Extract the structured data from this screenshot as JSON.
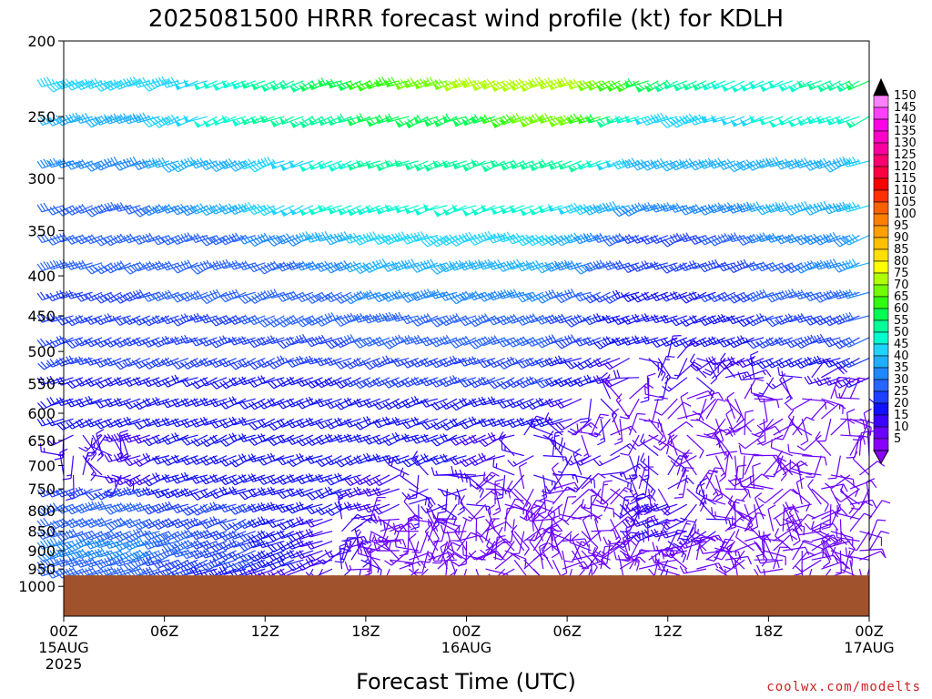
{
  "chart_data": {
    "type": "wind-profile",
    "title": "2025081500 HRRR forecast wind profile (kt) for KDLH",
    "xlabel": "Forecast Time (UTC)",
    "credit": "coolwx.com/modelts",
    "y_axis": {
      "variable": "pressure (mb)",
      "scale": "log",
      "inverted": true,
      "range": [
        1000,
        200
      ],
      "ticks": [
        "200",
        "250",
        "300",
        "350",
        "400",
        "450",
        "500",
        "550",
        "600",
        "650",
        "700",
        "750",
        "800",
        "850",
        "900",
        "950",
        "1000"
      ]
    },
    "x_axis": {
      "range_hours": [
        0,
        48
      ],
      "ticks": [
        {
          "hour": 0,
          "label": "00Z",
          "sub1": "15AUG",
          "sub2": "2025"
        },
        {
          "hour": 6,
          "label": "06Z",
          "sub1": "",
          "sub2": ""
        },
        {
          "hour": 12,
          "label": "12Z",
          "sub1": "",
          "sub2": ""
        },
        {
          "hour": 18,
          "label": "18Z",
          "sub1": "",
          "sub2": ""
        },
        {
          "hour": 24,
          "label": "00Z",
          "sub1": "16AUG",
          "sub2": ""
        },
        {
          "hour": 30,
          "label": "06Z",
          "sub1": "",
          "sub2": ""
        },
        {
          "hour": 36,
          "label": "12Z",
          "sub1": "",
          "sub2": ""
        },
        {
          "hour": 42,
          "label": "18Z",
          "sub1": "",
          "sub2": ""
        },
        {
          "hour": 48,
          "label": "00Z",
          "sub1": "17AUG",
          "sub2": ""
        }
      ]
    },
    "surface_pressure_mb": 968,
    "colorbar": {
      "unit": "kt",
      "levels": [
        5,
        10,
        15,
        20,
        25,
        30,
        35,
        40,
        45,
        50,
        55,
        60,
        65,
        70,
        75,
        80,
        85,
        90,
        95,
        100,
        105,
        110,
        115,
        120,
        125,
        130,
        135,
        140,
        145,
        150
      ],
      "colors": [
        "#8a00ff",
        "#6a00ff",
        "#3c00ff",
        "#1010ff",
        "#1e40ff",
        "#2864ff",
        "#1e88ff",
        "#1eb0ff",
        "#1ed4ff",
        "#00ffd0",
        "#00ff9a",
        "#00ff50",
        "#30ff10",
        "#70ff00",
        "#b0ff00",
        "#ffff00",
        "#ffe000",
        "#ffc000",
        "#ffa000",
        "#ff8000",
        "#ff6000",
        "#ff3000",
        "#ff0000",
        "#ff0040",
        "#ff0070",
        "#ff00a0",
        "#ff00c8",
        "#ff00e8",
        "#ff40ff",
        "#ff80ff"
      ]
    },
    "wind_speed_kt": {
      "description": "Approximate wind speed by pressure level (rows) over forecast hours 0,6,12,...,48 (columns)",
      "hours": [
        0,
        6,
        12,
        18,
        24,
        30,
        36,
        42,
        48
      ],
      "levels_mb": [
        225,
        250,
        285,
        325,
        355,
        385,
        420,
        450,
        480,
        510,
        540,
        575,
        610,
        640,
        680,
        720,
        750,
        785,
        820,
        850,
        875,
        900,
        925,
        950
      ],
      "values": [
        [
          45,
          45,
          55,
          65,
          75,
          80,
          60,
          50,
          60
        ],
        [
          40,
          45,
          55,
          60,
          60,
          75,
          45,
          50,
          55
        ],
        [
          35,
          40,
          45,
          55,
          55,
          60,
          40,
          40,
          45
        ],
        [
          30,
          35,
          45,
          55,
          50,
          50,
          35,
          40,
          45
        ],
        [
          30,
          30,
          35,
          45,
          45,
          45,
          25,
          35,
          40
        ],
        [
          30,
          30,
          30,
          40,
          40,
          40,
          25,
          30,
          40
        ],
        [
          25,
          30,
          30,
          35,
          35,
          35,
          20,
          30,
          35
        ],
        [
          25,
          25,
          30,
          35,
          30,
          30,
          20,
          25,
          30
        ],
        [
          25,
          25,
          25,
          30,
          30,
          30,
          20,
          25,
          30
        ],
        [
          25,
          25,
          25,
          25,
          25,
          25,
          15,
          20,
          25
        ],
        [
          20,
          20,
          20,
          25,
          25,
          25,
          15,
          15,
          20
        ],
        [
          20,
          20,
          20,
          20,
          20,
          20,
          10,
          10,
          15
        ],
        [
          20,
          20,
          20,
          20,
          20,
          20,
          10,
          10,
          10
        ],
        [
          15,
          20,
          20,
          20,
          20,
          15,
          10,
          10,
          10
        ],
        [
          15,
          20,
          20,
          20,
          20,
          15,
          15,
          10,
          10
        ],
        [
          15,
          20,
          20,
          20,
          15,
          15,
          15,
          10,
          10
        ],
        [
          25,
          25,
          20,
          20,
          15,
          10,
          15,
          10,
          10
        ],
        [
          30,
          30,
          25,
          20,
          15,
          10,
          20,
          10,
          10
        ],
        [
          30,
          30,
          25,
          15,
          10,
          10,
          20,
          10,
          10
        ],
        [
          30,
          35,
          25,
          15,
          10,
          10,
          20,
          10,
          10
        ],
        [
          35,
          35,
          25,
          15,
          10,
          10,
          15,
          10,
          10
        ],
        [
          35,
          35,
          25,
          15,
          10,
          10,
          15,
          10,
          10
        ],
        [
          30,
          30,
          25,
          15,
          10,
          10,
          15,
          10,
          10
        ],
        [
          30,
          30,
          20,
          15,
          10,
          10,
          15,
          10,
          10
        ]
      ]
    }
  }
}
